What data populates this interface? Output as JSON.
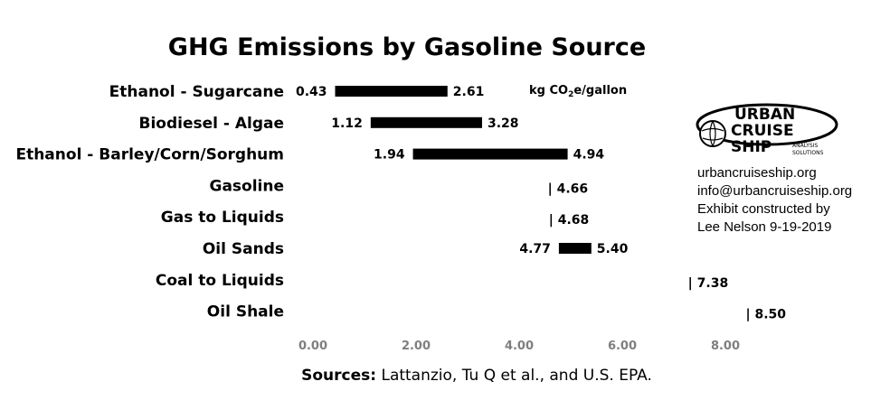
{
  "chart_data": {
    "type": "bar",
    "title": "GHG Emissions by Gasoline Source",
    "unit_label": "kg CO2e/gallon",
    "categories": [
      "Ethanol - Sugarcane",
      "Biodiesel - Algae",
      "Ethanol - Barley/Corn/Sorghum",
      "Gasoline",
      "Gas to Liquids",
      "Oil Sands",
      "Coal to Liquids",
      "Oil Shale"
    ],
    "series": [
      {
        "low": 0.43,
        "high": 2.61,
        "low_label": "0.43",
        "high_label": "2.61",
        "point": false
      },
      {
        "low": 1.12,
        "high": 3.28,
        "low_label": "1.12",
        "high_label": "3.28",
        "point": false
      },
      {
        "low": 1.94,
        "high": 4.94,
        "low_label": "1.94",
        "high_label": "4.94",
        "point": false
      },
      {
        "low": 4.66,
        "high": 4.66,
        "low_label": "",
        "high_label": "| 4.66",
        "point": true
      },
      {
        "low": 4.68,
        "high": 4.68,
        "low_label": "",
        "high_label": "| 4.68",
        "point": true
      },
      {
        "low": 4.77,
        "high": 5.4,
        "low_label": "4.77",
        "high_label": "5.40",
        "point": false
      },
      {
        "low": 7.38,
        "high": 7.38,
        "low_label": "",
        "high_label": "| 7.38",
        "point": true
      },
      {
        "low": 8.5,
        "high": 8.5,
        "low_label": "",
        "high_label": "| 8.50",
        "point": true
      }
    ],
    "xlim": [
      0,
      8
    ],
    "xticks": [
      "0.00",
      "2.00",
      "4.00",
      "6.00",
      "8.00"
    ],
    "grid": false,
    "source_prefix": "Sources:",
    "source_text": " Lattanzio, Tu Q et al., and U.S. EPA.",
    "bar_color": "#000000"
  },
  "branding": {
    "logo_line1": "URBAN",
    "logo_line2": "CRUISE",
    "logo_line3": "SHIP",
    "logo_sub1": "ANALYSIS",
    "logo_sub2": "SOLUTIONS",
    "website": "urbancruiseship.org",
    "email": "info@urbancruiseship.org",
    "credit_line1": "Exhibit constructed by",
    "credit_line2": "Lee Nelson 9-19-2019"
  }
}
